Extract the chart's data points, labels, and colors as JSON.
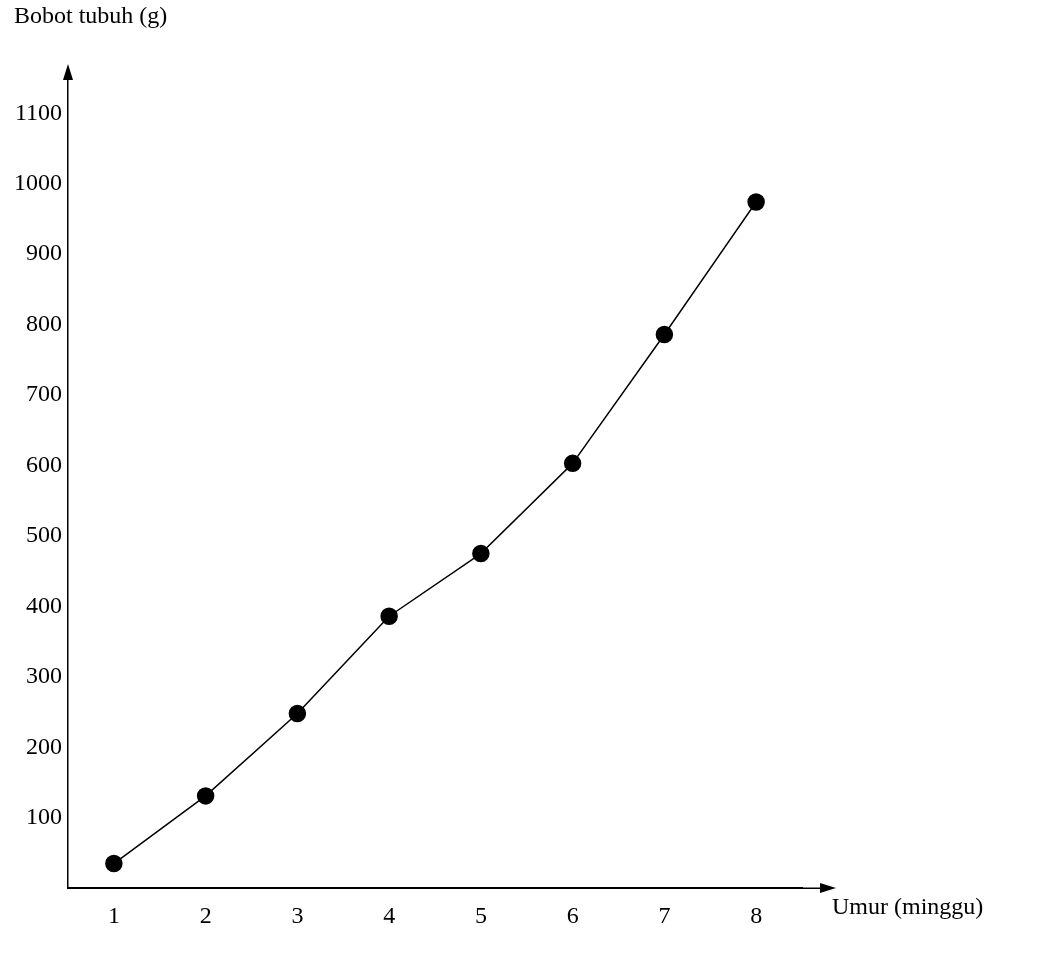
{
  "chart_data": {
    "type": "line",
    "xlabel": "Umur (minggu)",
    "ylabel": "Bobot tubuh (g)",
    "categories": [
      "1",
      "2",
      "3",
      "4",
      "5",
      "6",
      "7",
      "8"
    ],
    "series": [
      {
        "color": "#000000",
        "values": [
          35,
          131,
          248,
          386,
          475,
          603,
          786,
          974
        ]
      }
    ],
    "ylim": [
      0,
      1150
    ],
    "yticks": [
      100,
      200,
      300,
      400,
      500,
      600,
      700,
      800,
      900,
      1000,
      1100
    ],
    "grid": false,
    "legend": false,
    "marker": "circle",
    "line_style": "solid"
  }
}
